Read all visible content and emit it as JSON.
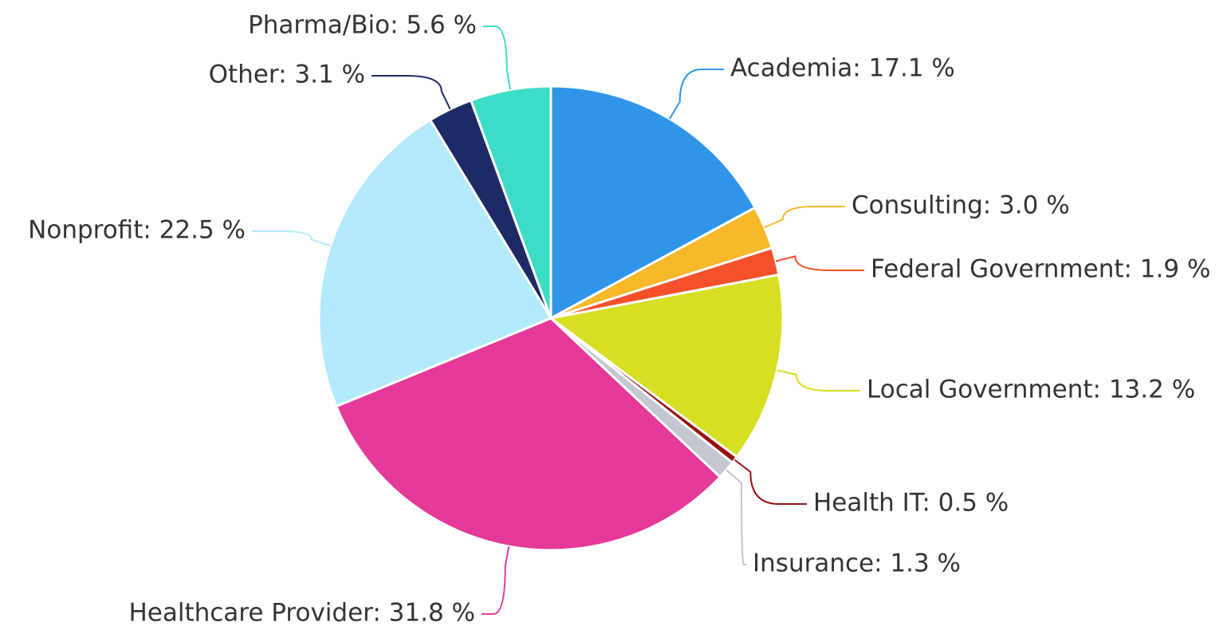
{
  "chart_data": {
    "type": "pie",
    "values": [
      17.1,
      3.0,
      1.9,
      13.2,
      0.5,
      1.3,
      31.8,
      22.5,
      3.1,
      5.6
    ],
    "value_labels": [
      "Academia: 17.1 %",
      "Consulting: 3.0 %",
      "Federal Government: 1.9 %",
      "Local Government: 13.2 %",
      "Health IT: 0.5 %",
      "Insurance: 1.3 %",
      "Healthcare Provider: 31.8 %",
      "Nonprofit: 22.5 %",
      "Other: 3.1 %",
      "Pharma/Bio: 5.6 %"
    ],
    "colors": [
      "#3095e8",
      "#f7b82a",
      "#f4502a",
      "#d6df22",
      "#9b1010",
      "#c4c6d0",
      "#e5399a",
      "#b3eafc",
      "#1e2a66",
      "#3ddcc6"
    ]
  }
}
